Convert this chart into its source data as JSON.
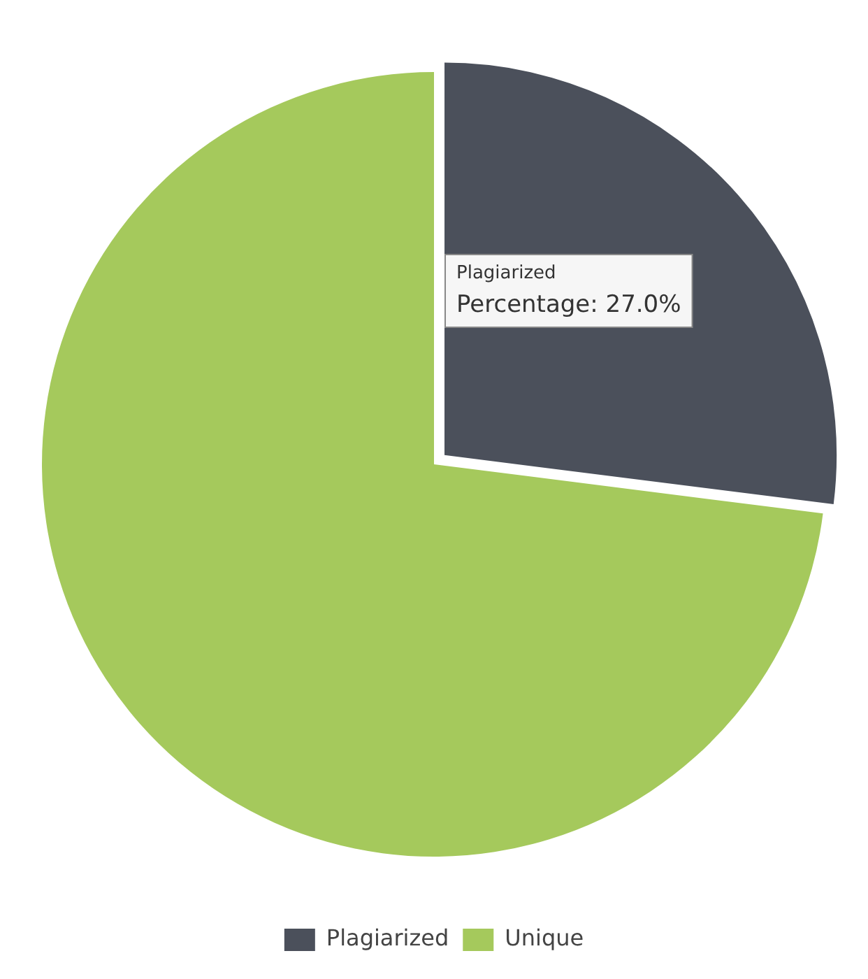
{
  "chart_data": {
    "type": "pie",
    "categories": [
      "Plagiarized",
      "Unique"
    ],
    "values": [
      27,
      73
    ],
    "colors": [
      "#4b505b",
      "#a5c95c"
    ],
    "legend": "bottom",
    "annotations": [
      "Plagiarized",
      "Percentage: 27.0%"
    ]
  }
}
